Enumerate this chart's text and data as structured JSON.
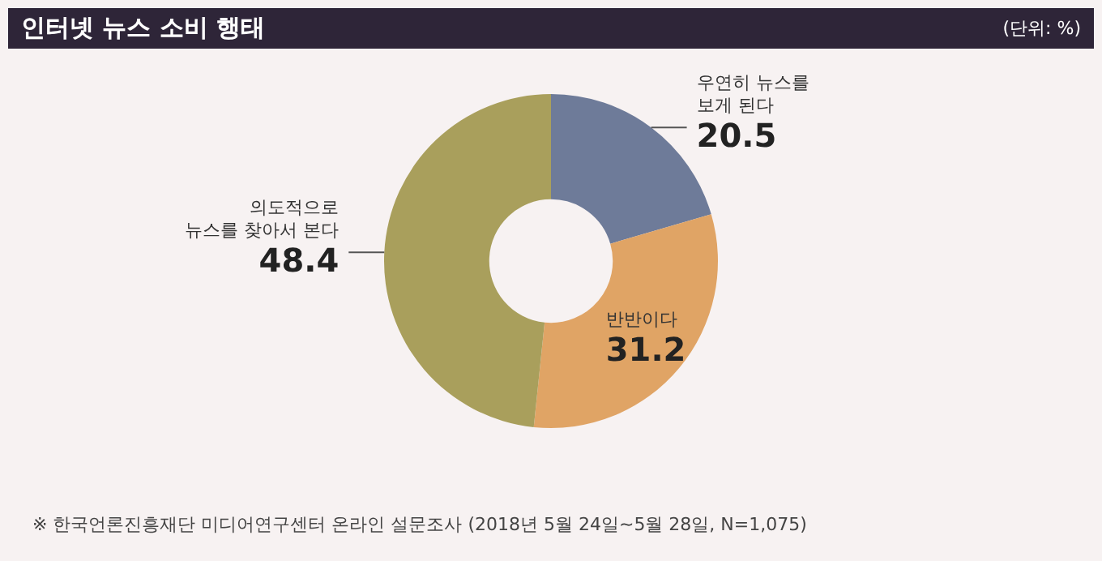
{
  "chart_data": {
    "type": "donut",
    "title": "인터넷 뉴스 소비 행태",
    "subtitle": "(단위: %)",
    "categories": [
      "우연히 뉴스를\n보게 된다",
      "반반이다",
      "의도적으로\n뉴스를 찾아서 본다"
    ],
    "values": [
      20.5,
      31.2,
      48.4
    ],
    "colors": [
      "#6e7b99",
      "#e0a465",
      "#a99f5c"
    ],
    "data_labels": true,
    "legend": false,
    "annotations": [
      "※ 한국언론진흥재단 미디어연구센터 온라인 설문조사 (2018년 5월 24일~5월 28일, N=1,075)"
    ]
  }
}
